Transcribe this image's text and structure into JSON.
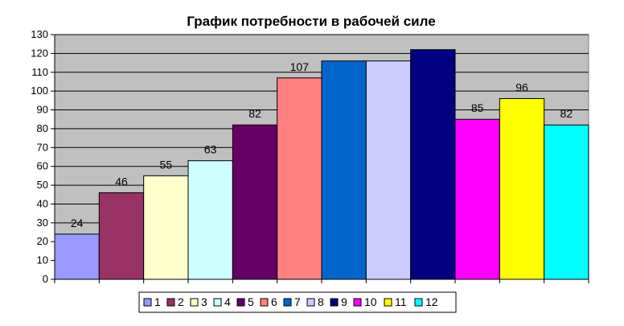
{
  "chart_data": {
    "type": "bar",
    "title": "График потребности в рабочей силе",
    "xlabel": "",
    "ylabel": "",
    "ylim": [
      0,
      130
    ],
    "ytick_step": 10,
    "grid": true,
    "legend_position": "bottom",
    "categories": [
      "1",
      "2",
      "3",
      "4",
      "5",
      "6",
      "7",
      "8",
      "9",
      "10",
      "11",
      "12"
    ],
    "values": [
      24,
      46,
      55,
      63,
      82,
      107,
      116,
      116,
      122,
      85,
      96,
      82
    ],
    "data_labels": [
      "24",
      "46",
      "55",
      "63",
      "82",
      "107",
      "",
      "",
      "",
      "85",
      "96",
      "82"
    ],
    "colors": [
      "#9999FF",
      "#993366",
      "#FFFFCC",
      "#CCFFFF",
      "#660066",
      "#FF8080",
      "#0066CC",
      "#CCCCFF",
      "#000080",
      "#FF00FF",
      "#FFFF00",
      "#00FFFF"
    ],
    "plot_background": "#C0C0C0"
  }
}
